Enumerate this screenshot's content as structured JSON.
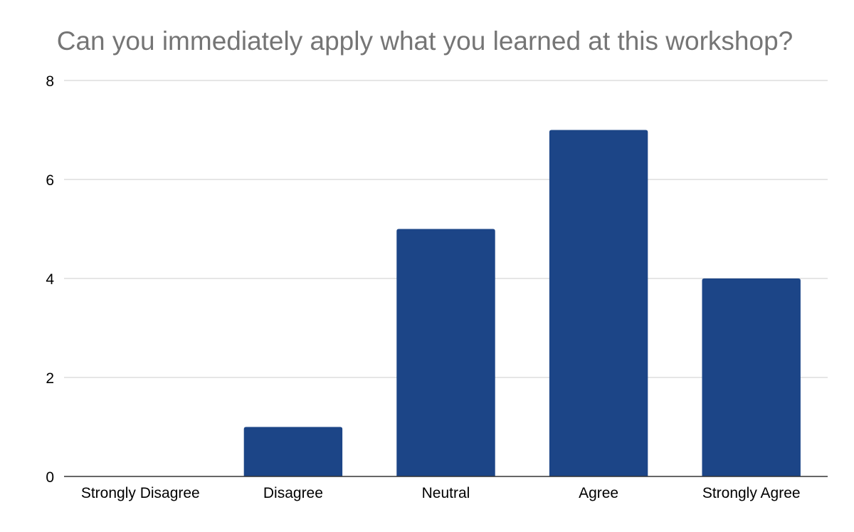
{
  "chart_data": {
    "type": "bar",
    "title": "Can you immediately apply what you learned at this workshop?",
    "categories": [
      "Strongly Disagree",
      "Disagree",
      "Neutral",
      "Agree",
      "Strongly Agree"
    ],
    "values": [
      0,
      1,
      5,
      7,
      4
    ],
    "xlabel": "",
    "ylabel": "",
    "ylim": [
      0,
      8
    ],
    "yticks": [
      "0",
      "2",
      "4",
      "6",
      "8"
    ],
    "grid": true,
    "legend": "none",
    "colors": {
      "bar": "#1c4587",
      "title": "#757575",
      "grid": "#cccccc",
      "axis": "#333333",
      "label": "#000000"
    }
  }
}
